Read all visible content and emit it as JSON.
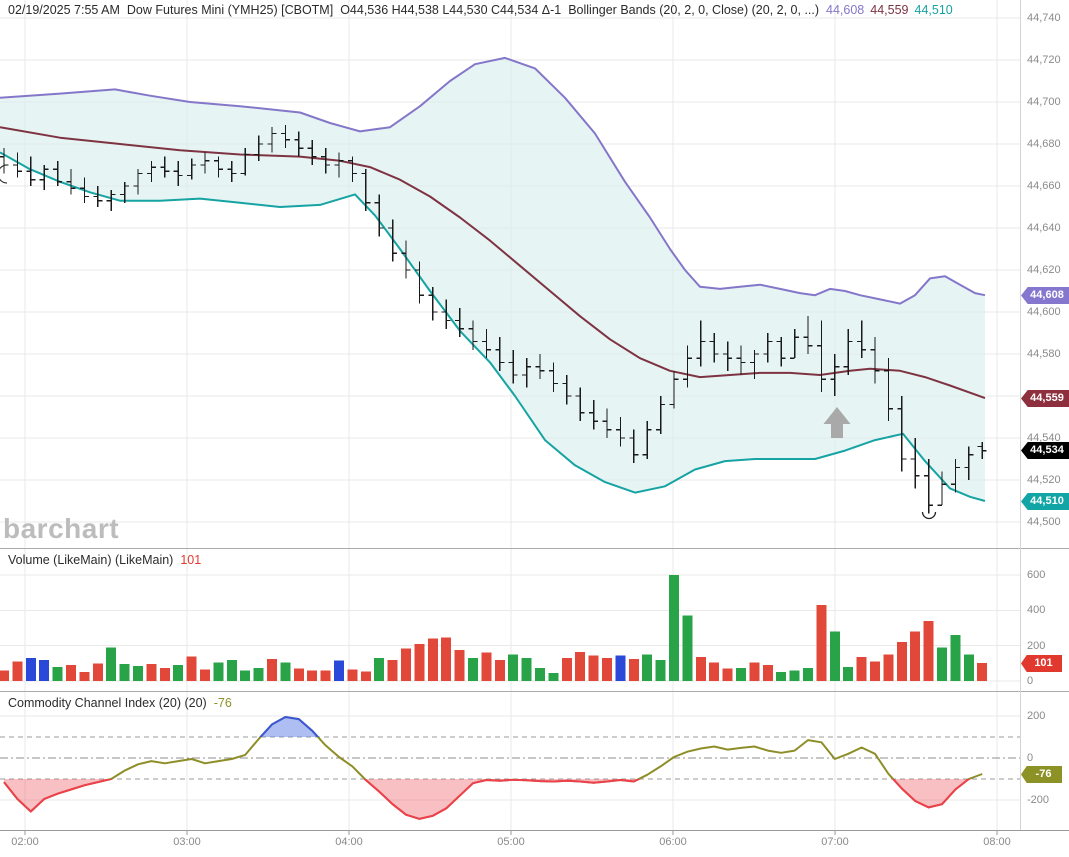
{
  "header": {
    "datetime": "02/19/2025 7:55 AM",
    "symbol": "Dow Futures Mini (YMH25) [CBOTM]",
    "ohlc": "O44,536 H44,538 L44,530 C44,534 Δ-1",
    "study": "Bollinger Bands (20, 2, 0, Close)  (20, 2, 0, ...)",
    "bb_upper_value": "44,608",
    "bb_middle_value": "44,559",
    "bb_lower_value": "44,510"
  },
  "volume_header": {
    "label": "Volume (LikeMain)  (LikeMain)",
    "value": "101"
  },
  "cci_header": {
    "label": "Commodity Channel Index (20)  (20)",
    "value": "-76"
  },
  "watermark": "barchart",
  "badges": {
    "bb_upper": "44,608",
    "bb_middle": "44,559",
    "last": "44,534",
    "bb_lower": "44,510",
    "volume": "101",
    "cci": "-76"
  },
  "time_axis": {
    "labels": [
      "02:00",
      "03:00",
      "04:00",
      "05:00",
      "06:00",
      "07:00",
      "08:00"
    ]
  },
  "colors": {
    "up": "#28a348",
    "down": "#e2483a",
    "neutral": "#2b49d8",
    "price_bars": "#1a1a1a",
    "bb_upper": "#8477c9",
    "bb_middle": "#7e3342",
    "bb_lower": "#16a3a3",
    "band_fill": "#dcefef",
    "cci_line": "#8e8e28",
    "cci_above": "#3a57d6",
    "cci_above_fill": "rgba(94,124,230,0.50)",
    "cci_below": "#ee3f4d",
    "cci_below_fill": "rgba(238,63,77,0.33)",
    "bb_upper_badge": "#8577cd",
    "bb_middle_badge": "#8e2f3e",
    "last_badge": "#000000",
    "bb_lower_badge": "#12a5a5",
    "volume_badge": "#e2392f",
    "cci_badge": "#8d9226"
  },
  "chart_data": [
    {
      "type": "ohlc_with_bollinger",
      "title": "Dow Futures Mini (YMH25) [CBOTM] 5-minute bars with Bollinger Bands (20,2,0,Close)",
      "ylim": [
        44490,
        44748
      ],
      "y_ticks": [
        44740,
        44720,
        44700,
        44680,
        44660,
        44640,
        44620,
        44600,
        44580,
        44560,
        44540,
        44520,
        44500
      ],
      "y_label_skip": [
        44560
      ],
      "bar_format": [
        "high",
        "low",
        "open",
        "close"
      ],
      "bars": [
        [
          44678,
          44666,
          44674,
          44670
        ],
        [
          44676,
          44664,
          44670,
          44667
        ],
        [
          44674,
          44660,
          44667,
          44663
        ],
        [
          44670,
          44658,
          44663,
          44668
        ],
        [
          44672,
          44660,
          44668,
          44662
        ],
        [
          44668,
          44656,
          44662,
          44659
        ],
        [
          44664,
          44652,
          44659,
          44655
        ],
        [
          44660,
          44650,
          44655,
          44653
        ],
        [
          44658,
          44648,
          44653,
          44656
        ],
        [
          44662,
          44652,
          44656,
          44660
        ],
        [
          44668,
          44656,
          44660,
          44666
        ],
        [
          44672,
          44662,
          44666,
          44669
        ],
        [
          44674,
          44664,
          44669,
          44667
        ],
        [
          44672,
          44660,
          44667,
          44665
        ],
        [
          44673,
          44663,
          44665,
          44670
        ],
        [
          44676,
          44666,
          44670,
          44672
        ],
        [
          44674,
          44664,
          44672,
          44668
        ],
        [
          44672,
          44662,
          44668,
          44666
        ],
        [
          44678,
          44665,
          44666,
          44675
        ],
        [
          44684,
          44672,
          44675,
          44680
        ],
        [
          44688,
          44676,
          44680,
          44685
        ],
        [
          44689,
          44678,
          44685,
          44682
        ],
        [
          44686,
          44674,
          44682,
          44678
        ],
        [
          44682,
          44670,
          44678,
          44674
        ],
        [
          44678,
          44666,
          44674,
          44670
        ],
        [
          44676,
          44664,
          44670,
          44672
        ],
        [
          44674,
          44662,
          44672,
          44666
        ],
        [
          44668,
          44648,
          44666,
          44652
        ],
        [
          44656,
          44636,
          44652,
          44640
        ],
        [
          44644,
          44624,
          44640,
          44628
        ],
        [
          44634,
          44616,
          44628,
          44620
        ],
        [
          44624,
          44604,
          44620,
          44608
        ],
        [
          44612,
          44596,
          44608,
          44600
        ],
        [
          44606,
          44592,
          44600,
          44596
        ],
        [
          44602,
          44588,
          44596,
          44592
        ],
        [
          44596,
          44582,
          44592,
          44586
        ],
        [
          44592,
          44578,
          44586,
          44582
        ],
        [
          44588,
          44572,
          44582,
          44576
        ],
        [
          44582,
          44566,
          44576,
          44570
        ],
        [
          44578,
          44564,
          44570,
          44574
        ],
        [
          44580,
          44568,
          44574,
          44572
        ],
        [
          44576,
          44562,
          44572,
          44566
        ],
        [
          44570,
          44556,
          44566,
          44560
        ],
        [
          44564,
          44548,
          44560,
          44552
        ],
        [
          44558,
          44544,
          44552,
          44548
        ],
        [
          44554,
          44540,
          44548,
          44544
        ],
        [
          44550,
          44536,
          44544,
          44540
        ],
        [
          44544,
          44528,
          44540,
          44532
        ],
        [
          44548,
          44530,
          44532,
          44544
        ],
        [
          44560,
          44542,
          44544,
          44556
        ],
        [
          44572,
          44554,
          44556,
          44568
        ],
        [
          44584,
          44564,
          44568,
          44578
        ],
        [
          44596,
          44574,
          44578,
          44586
        ],
        [
          44590,
          44576,
          44586,
          44580
        ],
        [
          44586,
          44572,
          44580,
          44578
        ],
        [
          44584,
          44570,
          44578,
          44576
        ],
        [
          44582,
          44568,
          44576,
          44580
        ],
        [
          44590,
          44576,
          44580,
          44586
        ],
        [
          44588,
          44574,
          44586,
          44578
        ],
        [
          44592,
          44578,
          44578,
          44588
        ],
        [
          44598,
          44580,
          44588,
          44584
        ],
        [
          44596,
          44562,
          44584,
          44568
        ],
        [
          44580,
          44560,
          44568,
          44574
        ],
        [
          44592,
          44570,
          44574,
          44586
        ],
        [
          44596,
          44578,
          44586,
          44582
        ],
        [
          44588,
          44566,
          44582,
          44572
        ],
        [
          44578,
          44548,
          44572,
          44554
        ],
        [
          44560,
          44524,
          44554,
          44530
        ],
        [
          44540,
          44516,
          44530,
          44522
        ],
        [
          44530,
          44504,
          44522,
          44508
        ],
        [
          44524,
          44508,
          44508,
          44518
        ],
        [
          44530,
          44514,
          44518,
          44526
        ],
        [
          44536,
          44520,
          44526,
          44532
        ],
        [
          44538,
          44530,
          44536,
          44534
        ]
      ],
      "bands": {
        "point_format": [
          "x_px",
          "price"
        ],
        "upper": [
          [
            0,
            44702
          ],
          [
            60,
            44704
          ],
          [
            115,
            44706
          ],
          [
            150,
            44703
          ],
          [
            190,
            44700
          ],
          [
            240,
            44698
          ],
          [
            300,
            44695
          ],
          [
            330,
            44690
          ],
          [
            360,
            44686
          ],
          [
            390,
            44688
          ],
          [
            420,
            44698
          ],
          [
            450,
            44710
          ],
          [
            475,
            44718
          ],
          [
            505,
            44721
          ],
          [
            535,
            44716
          ],
          [
            565,
            44702
          ],
          [
            595,
            44685
          ],
          [
            625,
            44662
          ],
          [
            650,
            44645
          ],
          [
            670,
            44630
          ],
          [
            685,
            44620
          ],
          [
            700,
            44612
          ],
          [
            720,
            44611
          ],
          [
            740,
            44612
          ],
          [
            760,
            44613
          ],
          [
            780,
            44611
          ],
          [
            800,
            44609
          ],
          [
            815,
            44608
          ],
          [
            830,
            44611
          ],
          [
            845,
            44610
          ],
          [
            860,
            44608
          ],
          [
            880,
            44606
          ],
          [
            900,
            44604
          ],
          [
            915,
            44608
          ],
          [
            930,
            44616
          ],
          [
            945,
            44617
          ],
          [
            960,
            44613
          ],
          [
            975,
            44609
          ],
          [
            985,
            44608
          ]
        ],
        "middle": [
          [
            0,
            44688
          ],
          [
            60,
            44683
          ],
          [
            120,
            44680
          ],
          [
            180,
            44677
          ],
          [
            240,
            44675
          ],
          [
            300,
            44674
          ],
          [
            340,
            44672
          ],
          [
            370,
            44669
          ],
          [
            400,
            44663
          ],
          [
            430,
            44655
          ],
          [
            460,
            44645
          ],
          [
            490,
            44634
          ],
          [
            520,
            44622
          ],
          [
            550,
            44610
          ],
          [
            580,
            44598
          ],
          [
            610,
            44587
          ],
          [
            640,
            44578
          ],
          [
            670,
            44572
          ],
          [
            700,
            44569
          ],
          [
            730,
            44570
          ],
          [
            760,
            44571
          ],
          [
            790,
            44571
          ],
          [
            820,
            44570
          ],
          [
            850,
            44572
          ],
          [
            870,
            44573
          ],
          [
            900,
            44572
          ],
          [
            925,
            44569
          ],
          [
            950,
            44565
          ],
          [
            985,
            44559
          ]
        ],
        "lower": [
          [
            0,
            44676
          ],
          [
            30,
            44668
          ],
          [
            60,
            44662
          ],
          [
            90,
            44657
          ],
          [
            120,
            44653
          ],
          [
            160,
            44653
          ],
          [
            200,
            44654
          ],
          [
            240,
            44652
          ],
          [
            280,
            44650
          ],
          [
            320,
            44651
          ],
          [
            355,
            44656
          ],
          [
            375,
            44646
          ],
          [
            400,
            44630
          ],
          [
            430,
            44610
          ],
          [
            460,
            44591
          ],
          [
            490,
            44576
          ],
          [
            515,
            44560
          ],
          [
            545,
            44539
          ],
          [
            575,
            44527
          ],
          [
            605,
            44519
          ],
          [
            635,
            44514
          ],
          [
            665,
            44517
          ],
          [
            695,
            44525
          ],
          [
            725,
            44529
          ],
          [
            755,
            44530
          ],
          [
            785,
            44530
          ],
          [
            815,
            44530
          ],
          [
            845,
            44534
          ],
          [
            875,
            44539
          ],
          [
            903,
            44542
          ],
          [
            925,
            44529
          ],
          [
            950,
            44516
          ],
          [
            970,
            44512
          ],
          [
            985,
            44510
          ]
        ]
      },
      "last_values": {
        "upper": 44608,
        "middle": 44559,
        "close": 44534,
        "lower": 44510
      }
    },
    {
      "type": "bar",
      "title": "Volume (LikeMain)",
      "ylim": [
        0,
        640
      ],
      "y_ticks": [
        600,
        400,
        200,
        0
      ],
      "current": 101,
      "values": [
        60,
        110,
        130,
        120,
        80,
        90,
        50,
        100,
        190,
        95,
        85,
        95,
        75,
        90,
        140,
        65,
        105,
        120,
        60,
        75,
        125,
        105,
        70,
        60,
        60,
        115,
        65,
        55,
        130,
        120,
        185,
        210,
        240,
        245,
        175,
        130,
        160,
        120,
        150,
        130,
        75,
        45,
        130,
        165,
        145,
        130,
        145,
        125,
        150,
        120,
        600,
        370,
        135,
        105,
        70,
        75,
        105,
        90,
        50,
        60,
        75,
        430,
        280,
        80,
        135,
        110,
        150,
        220,
        280,
        340,
        190,
        260,
        150,
        101
      ],
      "bar_colors": "rrbbgrrrgggrrgrrggggrgrrrbrrgrrrrrrgrrggggrrrrbrggggrrrgrrgggrggrrrrrrgggr",
      "color_key": {
        "r": "down",
        "g": "up",
        "b": "neutral"
      }
    },
    {
      "type": "line",
      "title": "Commodity Channel Index (20)",
      "ylim": [
        -320,
        220
      ],
      "grid_ticks": [
        200,
        -200
      ],
      "label_ticks": [
        200,
        0,
        -200
      ],
      "thresholds": {
        "upper": 100,
        "zero": 0,
        "lower": -100
      },
      "current": -76,
      "values": [
        -115,
        -195,
        -255,
        -195,
        -170,
        -150,
        -130,
        -115,
        -100,
        -60,
        -30,
        -15,
        -25,
        -15,
        -5,
        -25,
        -15,
        -5,
        15,
        90,
        160,
        195,
        185,
        130,
        60,
        5,
        -40,
        -105,
        -160,
        -220,
        -270,
        -290,
        -275,
        -240,
        -180,
        -120,
        -105,
        -108,
        -104,
        -106,
        -110,
        -112,
        -108,
        -112,
        -118,
        -112,
        -105,
        -112,
        -80,
        -40,
        5,
        30,
        45,
        55,
        40,
        48,
        55,
        35,
        25,
        35,
        85,
        75,
        -5,
        20,
        50,
        20,
        -75,
        -145,
        -205,
        -235,
        -220,
        -150,
        -100,
        -76
      ]
    }
  ]
}
